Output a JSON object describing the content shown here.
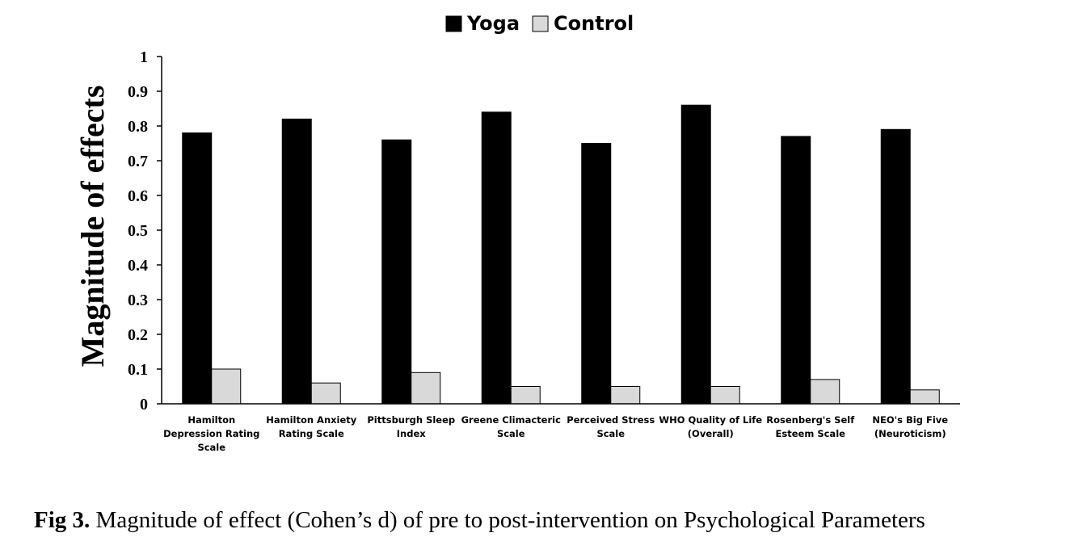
{
  "chart_data": {
    "type": "bar",
    "categories": [
      [
        "Hamilton",
        "Depression Rating",
        "Scale"
      ],
      [
        "Hamilton Anxiety",
        "Rating Scale"
      ],
      [
        "Pittsburgh Sleep",
        "Index"
      ],
      [
        "Greene Climacteric",
        "Scale"
      ],
      [
        "Perceived Stress",
        "Scale"
      ],
      [
        "WHO Quality of Life",
        "(Overall)"
      ],
      [
        "Rosenberg's Self",
        "Esteem Scale"
      ],
      [
        "NEO's Big Five",
        "(Neuroticism)"
      ]
    ],
    "series": [
      {
        "name": "Yoga",
        "color": "#000000",
        "values": [
          0.78,
          0.82,
          0.76,
          0.84,
          0.75,
          0.86,
          0.77,
          0.79
        ]
      },
      {
        "name": "Control",
        "color": "#d9d9d9",
        "values": [
          0.1,
          0.06,
          0.09,
          0.05,
          0.05,
          0.05,
          0.07,
          0.04
        ]
      }
    ],
    "ylabel": "Magnitude of effects",
    "ylim": [
      0,
      1
    ],
    "yticks": [
      "0",
      "0.1",
      "0.2",
      "0.3",
      "0.4",
      "0.5",
      "0.6",
      "0.7",
      "0.8",
      "0.9",
      "1"
    ],
    "legend_position": "top-center",
    "grid": false
  },
  "caption": {
    "label": "Fig 3.",
    "text": " Magnitude of effect (Cohen’s d) of pre to post-intervention on Psychological Parameters"
  }
}
